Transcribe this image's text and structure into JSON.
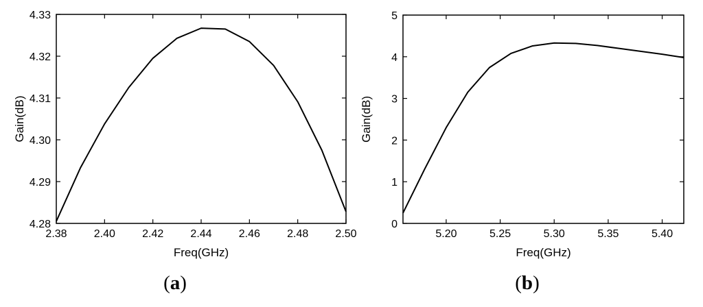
{
  "chart_data": [
    {
      "type": "line",
      "caption": {
        "open": "(",
        "letter": "a",
        "close": ")"
      },
      "xlabel": "Freq(GHz)",
      "ylabel": "Gain(dB)",
      "xlim": [
        2.38,
        2.5
      ],
      "ylim": [
        4.28,
        4.33
      ],
      "xticks": [
        2.38,
        2.4,
        2.42,
        2.44,
        2.46,
        2.48,
        2.5
      ],
      "xtick_labels": [
        "2.38",
        "2.40",
        "2.42",
        "2.44",
        "2.46",
        "2.48",
        "2.50"
      ],
      "yticks": [
        4.28,
        4.29,
        4.3,
        4.31,
        4.32,
        4.33
      ],
      "ytick_labels": [
        "4.28",
        "4.29",
        "4.30",
        "4.31",
        "4.32",
        "4.33"
      ],
      "grid": false,
      "series": [
        {
          "x": [
            2.38,
            2.39,
            2.4,
            2.41,
            2.42,
            2.43,
            2.44,
            2.45,
            2.46,
            2.47,
            2.48,
            2.49,
            2.5
          ],
          "y": [
            4.2805,
            4.2933,
            4.3038,
            4.3125,
            4.3195,
            4.3243,
            4.3267,
            4.3265,
            4.3235,
            4.3178,
            4.3091,
            4.2975,
            4.2828
          ]
        }
      ]
    },
    {
      "type": "line",
      "caption": {
        "open": "(",
        "letter": "b",
        "close": ")"
      },
      "xlabel": "Freq(GHz)",
      "ylabel": "Gain(dB)",
      "xlim": [
        5.16,
        5.42
      ],
      "ylim": [
        0,
        5
      ],
      "xticks": [
        5.2,
        5.25,
        5.3,
        5.35,
        5.4
      ],
      "xtick_labels": [
        "5.20",
        "5.25",
        "5.30",
        "5.35",
        "5.40"
      ],
      "yticks": [
        0,
        1,
        2,
        3,
        4,
        5
      ],
      "ytick_labels": [
        "0",
        "1",
        "2",
        "3",
        "4",
        "5"
      ],
      "grid": false,
      "series": [
        {
          "x": [
            5.16,
            5.18,
            5.2,
            5.22,
            5.24,
            5.26,
            5.28,
            5.3,
            5.32,
            5.34,
            5.36,
            5.38,
            5.4,
            5.42
          ],
          "y": [
            0.25,
            1.3,
            2.3,
            3.15,
            3.74,
            4.08,
            4.26,
            4.33,
            4.32,
            4.27,
            4.2,
            4.13,
            4.06,
            3.98
          ]
        }
      ]
    }
  ]
}
